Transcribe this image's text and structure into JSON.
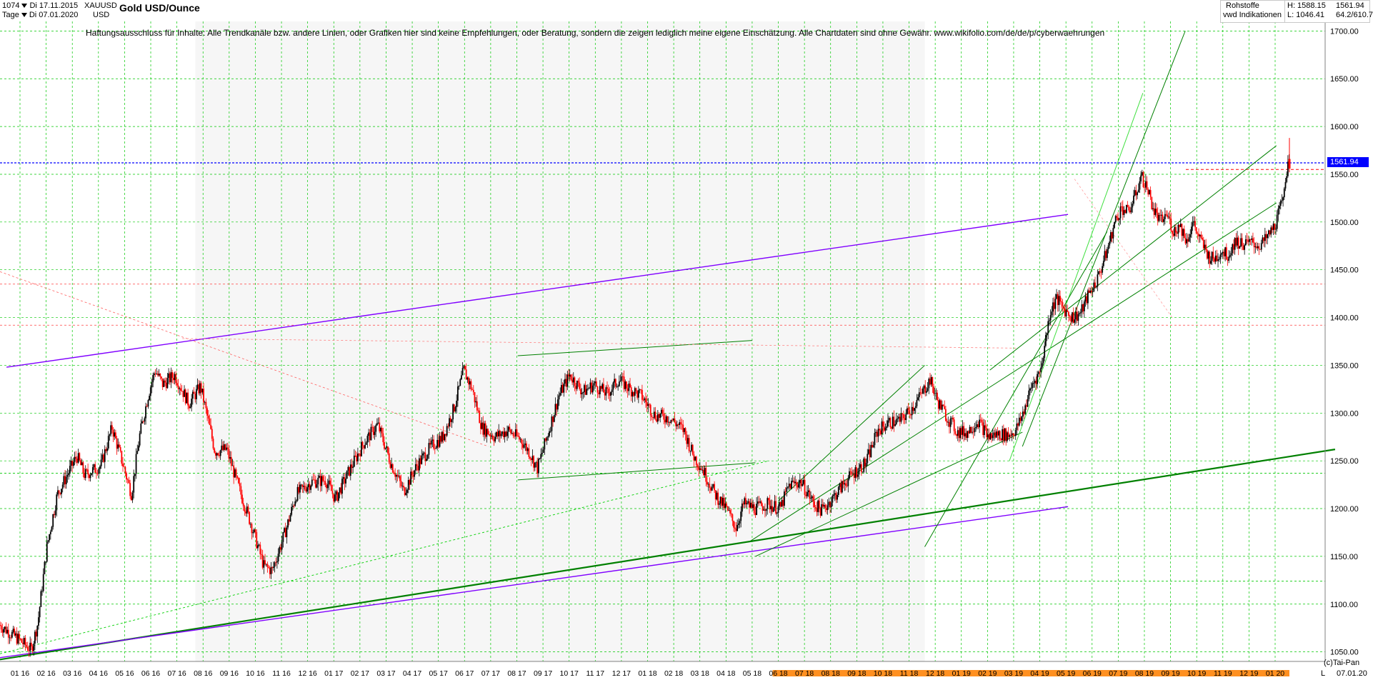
{
  "header": {
    "bar_count": "1074",
    "start_date": "Di 17.11.2015",
    "period": "Tage",
    "end_date": "Di 07.01.2020",
    "symbol": "XAUUSD",
    "currency": "USD",
    "title": "Gold USD/Ounce",
    "category": "Rohstoffe",
    "source": "vwd Indikationen",
    "high": "H: 1588.15",
    "low": "L: 1046.41",
    "last": "1561.94",
    "change": "64.2/610.7"
  },
  "disclaimer": "Haftungsausschluss für Inhalte: Alle Trendkanäle bzw. andere Linien, oder Grafiken hier sind keine Empfehlungen, oder Beratung, sondern die zeigen lediglich meine eigene Einschätzung. Alle Chartdaten sind ohne Gewähr.  www.wikifolio.com/de/de/p/cyberwaehrungen",
  "footer": {
    "copyright": "(c)Tai-Pan",
    "last_date": "07.01.20",
    "scale_mode": "L"
  },
  "colors": {
    "up": "#000000",
    "down": "#ff0000",
    "grid": "#00c800",
    "trend_green": "#008000",
    "channel_purple": "#8000ff",
    "price_line": "#0000ff",
    "resistance_red": "#ff4040",
    "highlight_orange": "#ff9020"
  },
  "chart_data": {
    "type": "candlestick",
    "title": "Gold USD/Ounce",
    "ylim": [
      1040,
      1710
    ],
    "y_ticks": [
      1050,
      1100,
      1150,
      1200,
      1250,
      1300,
      1350,
      1400,
      1450,
      1500,
      1550,
      1600,
      1650,
      1700
    ],
    "x_ticks": [
      "01 16",
      "02 16",
      "03 16",
      "04 16",
      "05 16",
      "06 16",
      "07 16",
      "08 16",
      "09 16",
      "10 16",
      "11 16",
      "12 16",
      "01 17",
      "02 17",
      "03 17",
      "04 17",
      "05 17",
      "06 17",
      "07 17",
      "08 17",
      "09 17",
      "10 17",
      "11 17",
      "12 17",
      "01 18",
      "02 18",
      "03 18",
      "04 18",
      "05 18",
      "06 18",
      "07 18",
      "08 18",
      "09 18",
      "10 18",
      "11 18",
      "12 18",
      "01 19",
      "02 19",
      "03 19",
      "04 19",
      "05 19",
      "06 19",
      "07 19",
      "08 19",
      "09 19",
      "10 19",
      "11 19",
      "12 19",
      "01 20"
    ],
    "last_price": 1561.94,
    "grid": true,
    "path_keypoints": [
      [
        0,
        1078
      ],
      [
        25,
        1065
      ],
      [
        48,
        1052
      ],
      [
        58,
        1080
      ],
      [
        72,
        1160
      ],
      [
        88,
        1215
      ],
      [
        118,
        1255
      ],
      [
        130,
        1235
      ],
      [
        155,
        1245
      ],
      [
        172,
        1285
      ],
      [
        188,
        1248
      ],
      [
        202,
        1215
      ],
      [
        214,
        1275
      ],
      [
        228,
        1320
      ],
      [
        238,
        1345
      ],
      [
        250,
        1330
      ],
      [
        268,
        1340
      ],
      [
        290,
        1310
      ],
      [
        308,
        1328
      ],
      [
        330,
        1260
      ],
      [
        348,
        1262
      ],
      [
        365,
        1225
      ],
      [
        385,
        1185
      ],
      [
        405,
        1140
      ],
      [
        418,
        1135
      ],
      [
        440,
        1180
      ],
      [
        455,
        1215
      ],
      [
        478,
        1228
      ],
      [
        500,
        1230
      ],
      [
        515,
        1210
      ],
      [
        535,
        1238
      ],
      [
        558,
        1268
      ],
      [
        580,
        1288
      ],
      [
        600,
        1248
      ],
      [
        620,
        1218
      ],
      [
        640,
        1245
      ],
      [
        662,
        1265
      ],
      [
        680,
        1275
      ],
      [
        697,
        1305
      ],
      [
        712,
        1345
      ],
      [
        725,
        1325
      ],
      [
        740,
        1285
      ],
      [
        760,
        1275
      ],
      [
        780,
        1282
      ],
      [
        800,
        1272
      ],
      [
        812,
        1260
      ],
      [
        825,
        1242
      ],
      [
        840,
        1275
      ],
      [
        858,
        1318
      ],
      [
        875,
        1340
      ],
      [
        895,
        1322
      ],
      [
        912,
        1330
      ],
      [
        932,
        1320
      ],
      [
        950,
        1335
      ],
      [
        968,
        1325
      ],
      [
        985,
        1318
      ],
      [
        1005,
        1298
      ],
      [
        1028,
        1295
      ],
      [
        1050,
        1282
      ],
      [
        1065,
        1255
      ],
      [
        1080,
        1240
      ],
      [
        1098,
        1215
      ],
      [
        1115,
        1200
      ],
      [
        1130,
        1180
      ],
      [
        1142,
        1205
      ],
      [
        1160,
        1200
      ],
      [
        1178,
        1205
      ],
      [
        1198,
        1200
      ],
      [
        1212,
        1225
      ],
      [
        1230,
        1228
      ],
      [
        1250,
        1205
      ],
      [
        1262,
        1198
      ],
      [
        1280,
        1212
      ],
      [
        1298,
        1228
      ],
      [
        1315,
        1240
      ],
      [
        1330,
        1248
      ],
      [
        1348,
        1282
      ],
      [
        1365,
        1290
      ],
      [
        1382,
        1292
      ],
      [
        1400,
        1305
      ],
      [
        1415,
        1320
      ],
      [
        1428,
        1335
      ],
      [
        1440,
        1312
      ],
      [
        1455,
        1295
      ],
      [
        1470,
        1280
      ],
      [
        1485,
        1280
      ],
      [
        1502,
        1292
      ],
      [
        1518,
        1275
      ],
      [
        1532,
        1278
      ],
      [
        1548,
        1277
      ],
      [
        1560,
        1282
      ],
      [
        1570,
        1298
      ],
      [
        1585,
        1330
      ],
      [
        1598,
        1345
      ],
      [
        1612,
        1405
      ],
      [
        1622,
        1420
      ],
      [
        1635,
        1408
      ],
      [
        1648,
        1400
      ],
      [
        1660,
        1405
      ],
      [
        1670,
        1422
      ],
      [
        1685,
        1440
      ],
      [
        1700,
        1470
      ],
      [
        1712,
        1500
      ],
      [
        1722,
        1515
      ],
      [
        1732,
        1510
      ],
      [
        1742,
        1525
      ],
      [
        1752,
        1548
      ],
      [
        1762,
        1535
      ],
      [
        1772,
        1512
      ],
      [
        1782,
        1500
      ],
      [
        1792,
        1508
      ],
      [
        1802,
        1490
      ],
      [
        1812,
        1497
      ],
      [
        1822,
        1480
      ],
      [
        1832,
        1500
      ],
      [
        1840,
        1485
      ],
      [
        1850,
        1472
      ],
      [
        1858,
        1462
      ],
      [
        1866,
        1462
      ],
      [
        1876,
        1470
      ],
      [
        1886,
        1465
      ],
      [
        1896,
        1480
      ],
      [
        1904,
        1478
      ],
      [
        1914,
        1477
      ],
      [
        1924,
        1478
      ],
      [
        1934,
        1475
      ],
      [
        1942,
        1480
      ],
      [
        1952,
        1490
      ],
      [
        1960,
        1500
      ],
      [
        1968,
        1520
      ],
      [
        1974,
        1548
      ],
      [
        1980,
        1562
      ]
    ],
    "x_domain": [
      0,
      1980
    ]
  }
}
